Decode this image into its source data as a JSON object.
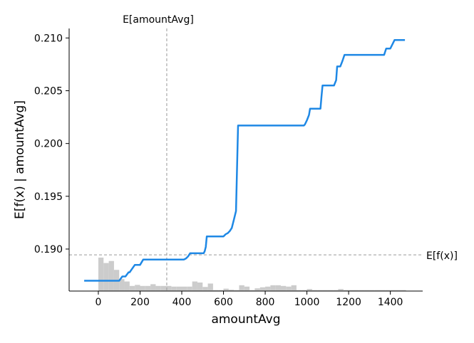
{
  "chart_data": {
    "type": "line",
    "title": "",
    "xlabel": "amountAvg",
    "ylabel": "E[f(x) | amountAvg]",
    "xlim": [
      -140,
      1555
    ],
    "ylim": [
      0.18602,
      0.2109
    ],
    "xticks": [
      0,
      200,
      400,
      600,
      800,
      1000,
      1200,
      1400
    ],
    "xtick_labels": [
      "0",
      "200",
      "400",
      "600",
      "800",
      "1000",
      "1200",
      "1400"
    ],
    "yticks": [
      0.19,
      0.195,
      0.2,
      0.205,
      0.21
    ],
    "ytick_labels": [
      "0.190",
      "0.195",
      "0.200",
      "0.205",
      "0.210"
    ],
    "grid": false,
    "series": [
      {
        "color": "#1e88e5",
        "x": [
          -68,
          0,
          100,
          115,
          130,
          145,
          150,
          175,
          185,
          200,
          215,
          230,
          260,
          320,
          350,
          410,
          420,
          430,
          440,
          470,
          490,
          500,
          505,
          510,
          515,
          520,
          540,
          580,
          590,
          600,
          610,
          620,
          630,
          640,
          650,
          660,
          670,
          680,
          700,
          800,
          900,
          985,
          990,
          1000,
          1010,
          1015,
          1050,
          1065,
          1070,
          1075,
          1085,
          1100,
          1110,
          1120,
          1130,
          1140,
          1145,
          1160,
          1170,
          1180,
          1200,
          1300,
          1350,
          1360,
          1370,
          1380,
          1395,
          1400,
          1410,
          1420,
          1470
        ],
        "y": [
          0.187,
          0.187,
          0.187,
          0.1874,
          0.1874,
          0.1878,
          0.1878,
          0.1885,
          0.1885,
          0.1885,
          0.189,
          0.189,
          0.189,
          0.189,
          0.189,
          0.189,
          0.1891,
          0.1893,
          0.1896,
          0.1896,
          0.1896,
          0.1896,
          0.1896,
          0.1898,
          0.1902,
          0.1912,
          0.1912,
          0.1912,
          0.1912,
          0.1912,
          0.1914,
          0.1915,
          0.1917,
          0.192,
          0.1928,
          0.1936,
          0.2017,
          0.2017,
          0.2017,
          0.2017,
          0.2017,
          0.2017,
          0.2018,
          0.2022,
          0.2027,
          0.2033,
          0.2033,
          0.2033,
          0.2045,
          0.2055,
          0.2055,
          0.2055,
          0.2055,
          0.2055,
          0.2055,
          0.206,
          0.2073,
          0.2073,
          0.2078,
          0.2084,
          0.2084,
          0.2084,
          0.2084,
          0.2084,
          0.2084,
          0.209,
          0.209,
          0.209,
          0.2094,
          0.2098,
          0.2098
        ]
      }
    ],
    "histogram": {
      "color": "#cccccc",
      "bin_width": 25,
      "bin_starts": [
        0,
        25,
        50,
        75,
        100,
        125,
        150,
        175,
        200,
        225,
        250,
        275,
        300,
        325,
        350,
        375,
        400,
        425,
        450,
        475,
        500,
        525,
        550,
        575,
        600,
        625,
        650,
        675,
        700,
        725,
        750,
        775,
        800,
        825,
        850,
        875,
        900,
        925,
        950,
        975,
        1000,
        1025,
        1050,
        1075,
        1100,
        1125,
        1150,
        1175,
        1200,
        1225,
        1250,
        1275,
        1300,
        1325,
        1350,
        1375,
        1400,
        1425,
        1450
      ],
      "relative_heights": [
        0.98,
        0.82,
        0.88,
        0.62,
        0.35,
        0.28,
        0.15,
        0.18,
        0.15,
        0.15,
        0.2,
        0.15,
        0.15,
        0.15,
        0.13,
        0.13,
        0.13,
        0.13,
        0.28,
        0.25,
        0.12,
        0.22,
        0.03,
        0.03,
        0.07,
        0.04,
        0.03,
        0.17,
        0.13,
        0.03,
        0.08,
        0.11,
        0.13,
        0.17,
        0.17,
        0.15,
        0.13,
        0.17,
        0.03,
        0.03,
        0.06,
        0.03,
        0.03,
        0.03,
        0.03,
        0.03,
        0.06,
        0.03,
        0.03,
        0.03,
        0.03,
        0.03,
        0.03,
        0.03,
        0.03,
        0.03,
        0.03,
        0.03,
        0.03
      ]
    },
    "annotations": [
      {
        "label": "E[amountAvg]",
        "axis": "x",
        "value": 328
      },
      {
        "label": "E[f(x)]",
        "axis": "y",
        "value": 0.18945
      }
    ]
  }
}
